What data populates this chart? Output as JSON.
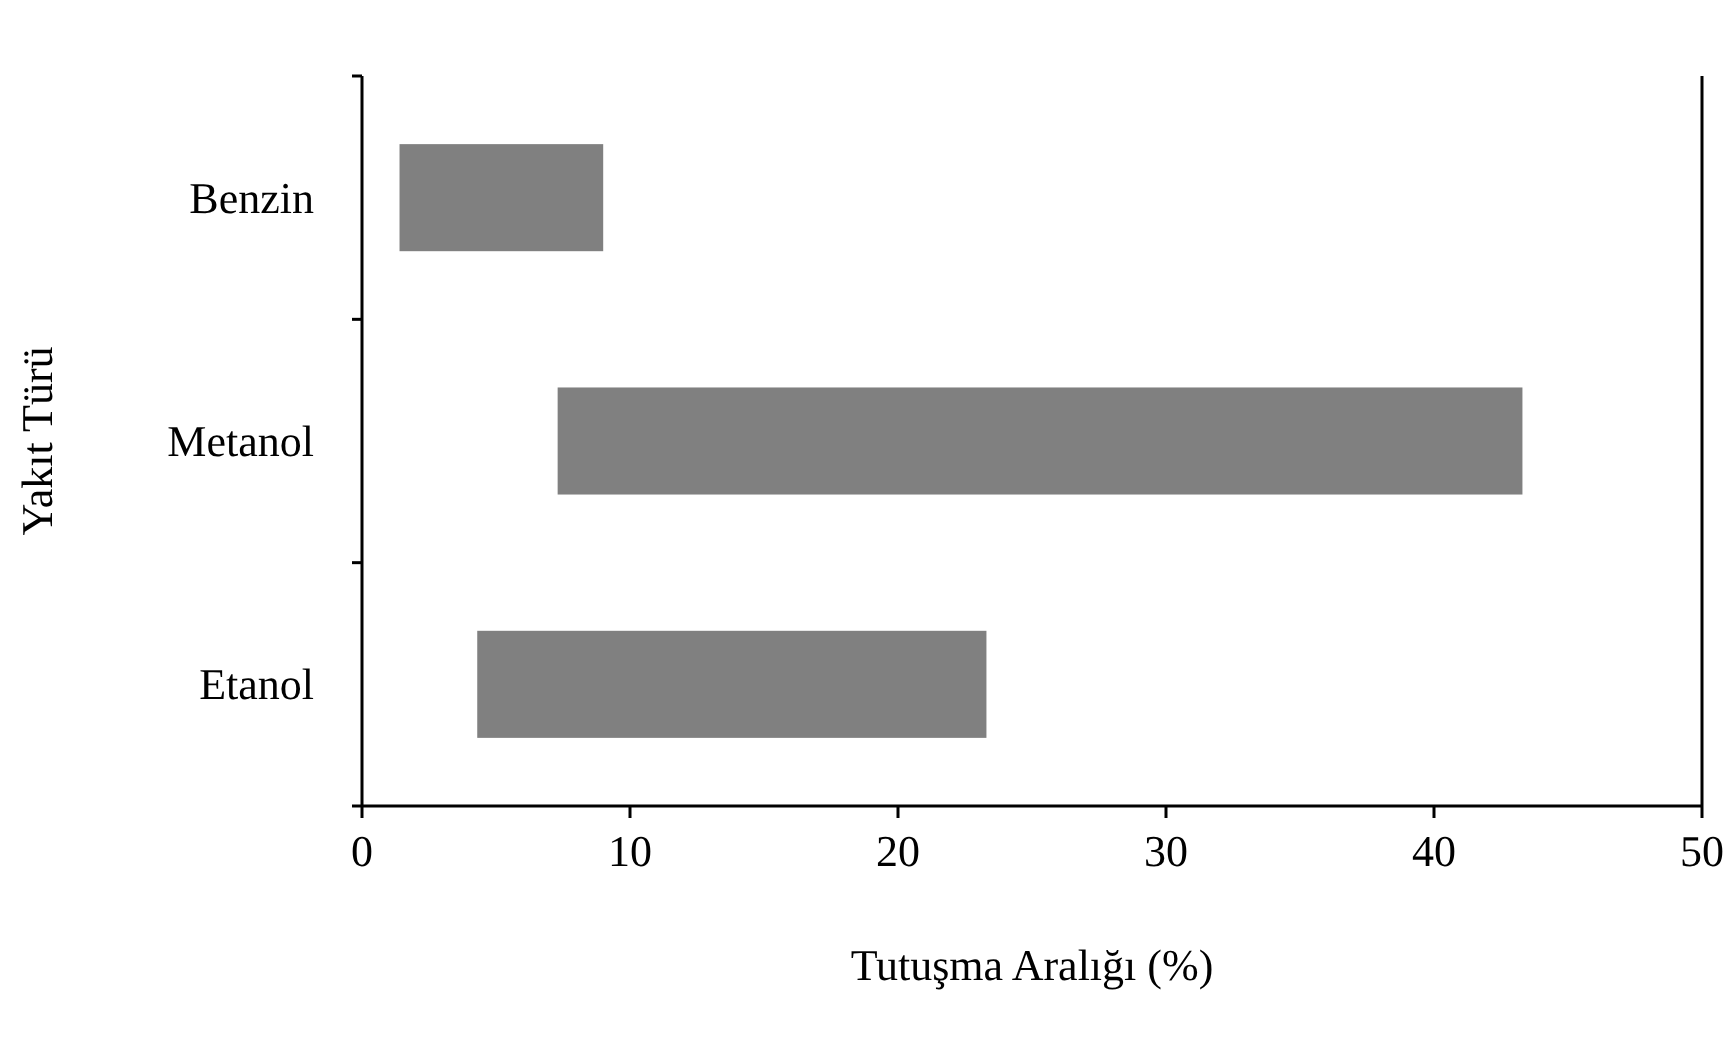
{
  "chart_data": {
    "type": "bar",
    "orientation": "horizontal",
    "xlabel": "Tutuşma Aralığı (%)",
    "ylabel": "Yakıt Türü",
    "categories": [
      "Benzin",
      "Metanol",
      "Etanol"
    ],
    "base": [
      1.4,
      7.3,
      4.3
    ],
    "values": [
      7.6,
      36,
      19
    ],
    "color": "#808080",
    "xlim": [
      0,
      50
    ],
    "xticks": [
      0,
      10,
      20,
      30,
      40,
      50
    ],
    "grid": false
  }
}
